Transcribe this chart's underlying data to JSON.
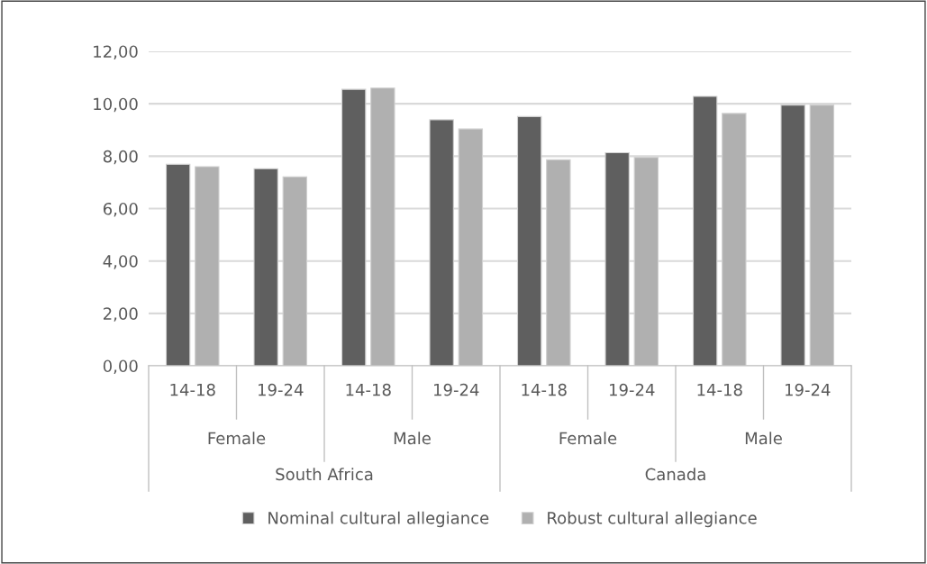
{
  "chart_data": {
    "type": "bar",
    "categories": [
      "14-18",
      "19-24",
      "14-18",
      "19-24",
      "14-18",
      "19-24",
      "14-18",
      "19-24"
    ],
    "series": [
      {
        "name": "Nominal cultural allegiance",
        "color": "#5f5f5f",
        "values": [
          7.69,
          7.52,
          10.55,
          9.39,
          9.51,
          8.13,
          10.28,
          9.95
        ]
      },
      {
        "name": "Robust cultural allegiance",
        "color": "#b0b0b0",
        "values": [
          7.6,
          7.21,
          10.6,
          9.04,
          7.86,
          7.95,
          9.63,
          9.95
        ]
      }
    ],
    "ylim": [
      0,
      12
    ],
    "yticks": [
      {
        "value": 0,
        "label": "0,00"
      },
      {
        "value": 2,
        "label": "2,00"
      },
      {
        "value": 4,
        "label": "4,00"
      },
      {
        "value": 6,
        "label": "6,00"
      },
      {
        "value": 8,
        "label": "8,00"
      },
      {
        "value": 10,
        "label": "10,00"
      },
      {
        "value": 12,
        "label": "12,00"
      }
    ],
    "grid": "y",
    "legend": "bottom",
    "annotations": [
      "Female",
      "Male",
      "Female",
      "Male",
      "South Africa",
      "Canada"
    ]
  }
}
